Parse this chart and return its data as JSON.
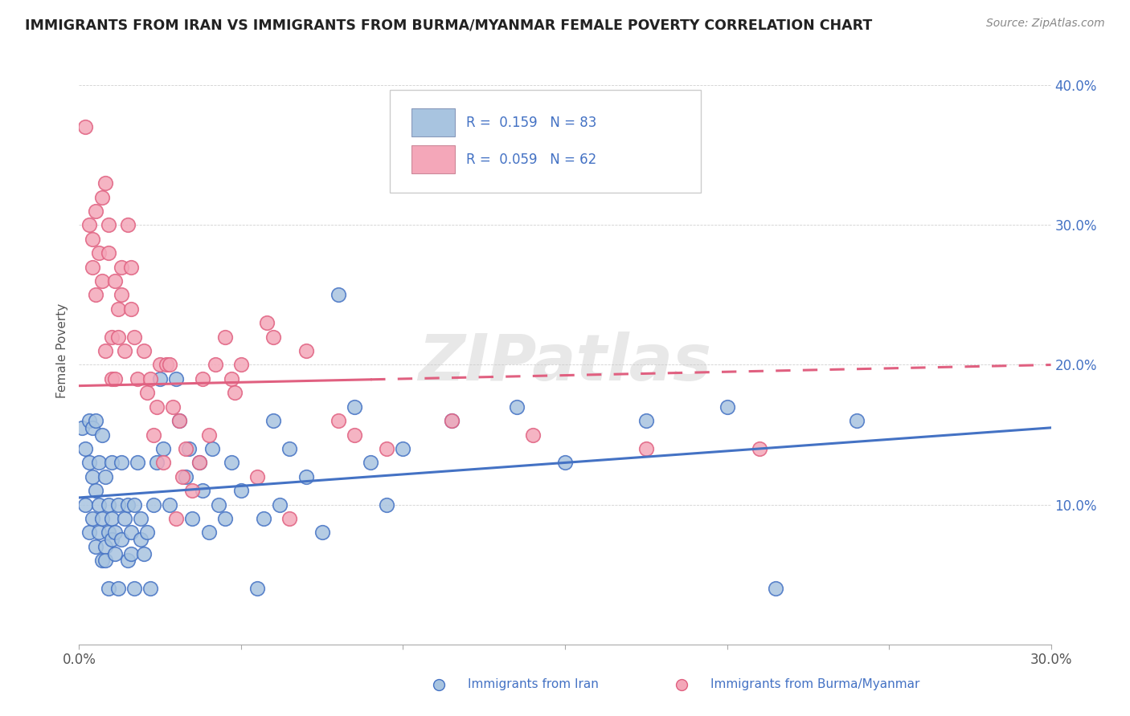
{
  "title": "IMMIGRANTS FROM IRAN VS IMMIGRANTS FROM BURMA/MYANMAR FEMALE POVERTY CORRELATION CHART",
  "source": "Source: ZipAtlas.com",
  "xlabel_iran": "Immigrants from Iran",
  "xlabel_burma": "Immigrants from Burma/Myanmar",
  "ylabel": "Female Poverty",
  "xlim": [
    0.0,
    0.3
  ],
  "ylim": [
    0.0,
    0.42
  ],
  "legend_R_iran": "R =  0.159",
  "legend_N_iran": "N = 83",
  "legend_R_burma": "R =  0.059",
  "legend_N_burma": "N = 62",
  "watermark": "ZIPatlas",
  "iran_color": "#a8c4e0",
  "burma_color": "#f4a7b9",
  "iran_line_color": "#4472c4",
  "burma_line_color": "#e06080",
  "iran_scatter": [
    [
      0.001,
      0.155
    ],
    [
      0.002,
      0.14
    ],
    [
      0.002,
      0.1
    ],
    [
      0.003,
      0.08
    ],
    [
      0.003,
      0.13
    ],
    [
      0.003,
      0.16
    ],
    [
      0.004,
      0.12
    ],
    [
      0.004,
      0.09
    ],
    [
      0.004,
      0.155
    ],
    [
      0.005,
      0.07
    ],
    [
      0.005,
      0.16
    ],
    [
      0.005,
      0.11
    ],
    [
      0.006,
      0.08
    ],
    [
      0.006,
      0.13
    ],
    [
      0.006,
      0.1
    ],
    [
      0.007,
      0.06
    ],
    [
      0.007,
      0.09
    ],
    [
      0.007,
      0.15
    ],
    [
      0.008,
      0.07
    ],
    [
      0.008,
      0.12
    ],
    [
      0.008,
      0.06
    ],
    [
      0.009,
      0.08
    ],
    [
      0.009,
      0.04
    ],
    [
      0.009,
      0.1
    ],
    [
      0.01,
      0.13
    ],
    [
      0.01,
      0.075
    ],
    [
      0.01,
      0.09
    ],
    [
      0.011,
      0.065
    ],
    [
      0.011,
      0.08
    ],
    [
      0.012,
      0.04
    ],
    [
      0.012,
      0.1
    ],
    [
      0.013,
      0.13
    ],
    [
      0.013,
      0.075
    ],
    [
      0.014,
      0.09
    ],
    [
      0.015,
      0.06
    ],
    [
      0.015,
      0.1
    ],
    [
      0.016,
      0.065
    ],
    [
      0.016,
      0.08
    ],
    [
      0.017,
      0.04
    ],
    [
      0.017,
      0.1
    ],
    [
      0.018,
      0.13
    ],
    [
      0.019,
      0.075
    ],
    [
      0.019,
      0.09
    ],
    [
      0.02,
      0.065
    ],
    [
      0.021,
      0.08
    ],
    [
      0.022,
      0.04
    ],
    [
      0.023,
      0.1
    ],
    [
      0.024,
      0.13
    ],
    [
      0.025,
      0.19
    ],
    [
      0.026,
      0.14
    ],
    [
      0.028,
      0.1
    ],
    [
      0.03,
      0.19
    ],
    [
      0.031,
      0.16
    ],
    [
      0.033,
      0.12
    ],
    [
      0.034,
      0.14
    ],
    [
      0.035,
      0.09
    ],
    [
      0.037,
      0.13
    ],
    [
      0.038,
      0.11
    ],
    [
      0.04,
      0.08
    ],
    [
      0.041,
      0.14
    ],
    [
      0.043,
      0.1
    ],
    [
      0.045,
      0.09
    ],
    [
      0.047,
      0.13
    ],
    [
      0.05,
      0.11
    ],
    [
      0.055,
      0.04
    ],
    [
      0.057,
      0.09
    ],
    [
      0.06,
      0.16
    ],
    [
      0.062,
      0.1
    ],
    [
      0.065,
      0.14
    ],
    [
      0.07,
      0.12
    ],
    [
      0.075,
      0.08
    ],
    [
      0.08,
      0.25
    ],
    [
      0.085,
      0.17
    ],
    [
      0.09,
      0.13
    ],
    [
      0.095,
      0.1
    ],
    [
      0.1,
      0.14
    ],
    [
      0.115,
      0.16
    ],
    [
      0.135,
      0.17
    ],
    [
      0.15,
      0.13
    ],
    [
      0.175,
      0.16
    ],
    [
      0.2,
      0.17
    ],
    [
      0.215,
      0.04
    ],
    [
      0.24,
      0.16
    ]
  ],
  "burma_scatter": [
    [
      0.002,
      0.37
    ],
    [
      0.003,
      0.3
    ],
    [
      0.004,
      0.29
    ],
    [
      0.004,
      0.27
    ],
    [
      0.005,
      0.31
    ],
    [
      0.005,
      0.25
    ],
    [
      0.006,
      0.28
    ],
    [
      0.007,
      0.32
    ],
    [
      0.007,
      0.26
    ],
    [
      0.008,
      0.33
    ],
    [
      0.008,
      0.21
    ],
    [
      0.009,
      0.28
    ],
    [
      0.009,
      0.3
    ],
    [
      0.01,
      0.19
    ],
    [
      0.01,
      0.22
    ],
    [
      0.011,
      0.26
    ],
    [
      0.011,
      0.19
    ],
    [
      0.012,
      0.24
    ],
    [
      0.012,
      0.22
    ],
    [
      0.013,
      0.27
    ],
    [
      0.013,
      0.25
    ],
    [
      0.014,
      0.21
    ],
    [
      0.015,
      0.3
    ],
    [
      0.016,
      0.27
    ],
    [
      0.016,
      0.24
    ],
    [
      0.017,
      0.22
    ],
    [
      0.018,
      0.19
    ],
    [
      0.02,
      0.21
    ],
    [
      0.021,
      0.18
    ],
    [
      0.022,
      0.19
    ],
    [
      0.023,
      0.15
    ],
    [
      0.024,
      0.17
    ],
    [
      0.025,
      0.2
    ],
    [
      0.026,
      0.13
    ],
    [
      0.027,
      0.2
    ],
    [
      0.028,
      0.2
    ],
    [
      0.029,
      0.17
    ],
    [
      0.03,
      0.09
    ],
    [
      0.031,
      0.16
    ],
    [
      0.032,
      0.12
    ],
    [
      0.033,
      0.14
    ],
    [
      0.035,
      0.11
    ],
    [
      0.037,
      0.13
    ],
    [
      0.038,
      0.19
    ],
    [
      0.04,
      0.15
    ],
    [
      0.042,
      0.2
    ],
    [
      0.045,
      0.22
    ],
    [
      0.047,
      0.19
    ],
    [
      0.048,
      0.18
    ],
    [
      0.05,
      0.2
    ],
    [
      0.055,
      0.12
    ],
    [
      0.058,
      0.23
    ],
    [
      0.06,
      0.22
    ],
    [
      0.065,
      0.09
    ],
    [
      0.07,
      0.21
    ],
    [
      0.08,
      0.16
    ],
    [
      0.085,
      0.15
    ],
    [
      0.095,
      0.14
    ],
    [
      0.115,
      0.16
    ],
    [
      0.14,
      0.15
    ],
    [
      0.175,
      0.14
    ],
    [
      0.21,
      0.14
    ]
  ]
}
